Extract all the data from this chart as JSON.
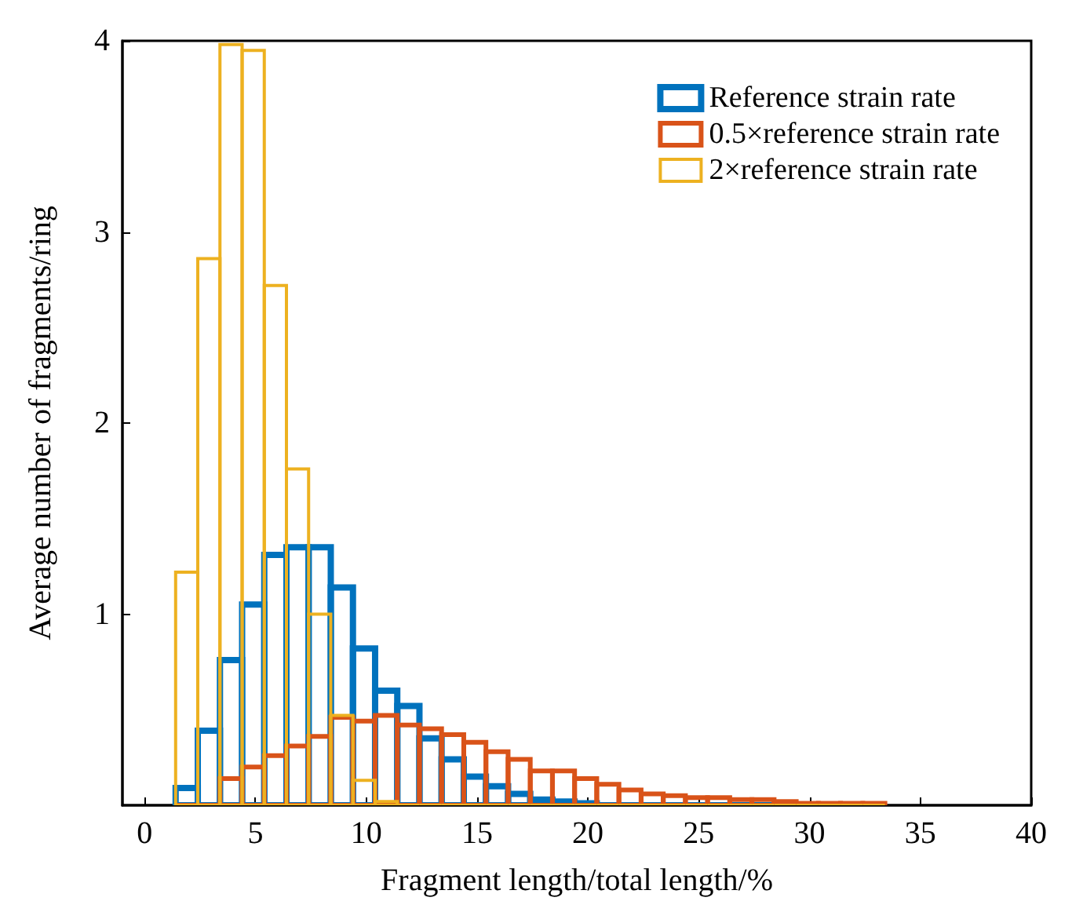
{
  "chart_data": {
    "type": "histogram",
    "xlabel": "Fragment length/total length/%",
    "ylabel": "Average number of fragments/ring",
    "bins": [
      1.4,
      2.4,
      3.4,
      4.4,
      5.4,
      6.4,
      7.4,
      8.4,
      9.4,
      10.4,
      11.4,
      12.4,
      13.4,
      14.4,
      15.4,
      16.4,
      17.4,
      18.4,
      19.4,
      20.4,
      21.4,
      22.4,
      23.4,
      24.4,
      25.4,
      26.4,
      27.4,
      28.4,
      29.4,
      30.4,
      31.4,
      32.4,
      33.4
    ],
    "series": [
      {
        "name": "Reference strain rate",
        "color": "#0072bd",
        "values": [
          0.09,
          0.39,
          0.76,
          1.05,
          1.31,
          1.35,
          1.35,
          1.14,
          0.82,
          0.6,
          0.52,
          0.35,
          0.24,
          0.15,
          0.1,
          0.06,
          0.03,
          0.02,
          0.01,
          0,
          0,
          0,
          0,
          0,
          0,
          0,
          0,
          0,
          0,
          0,
          0,
          0
        ]
      },
      {
        "name": "0.5×reference strain rate",
        "color": "#d95319",
        "values": [
          0,
          0,
          0.14,
          0.2,
          0.26,
          0.31,
          0.36,
          0.46,
          0.44,
          0.47,
          0.42,
          0.4,
          0.37,
          0.33,
          0.28,
          0.24,
          0.18,
          0.18,
          0.14,
          0.11,
          0.08,
          0.06,
          0.05,
          0.04,
          0.04,
          0.03,
          0.03,
          0.02,
          0.01,
          0.01,
          0.01,
          0.01
        ]
      },
      {
        "name": "2×reference strain rate",
        "color": "#edb120",
        "values": [
          1.22,
          2.86,
          3.98,
          3.95,
          2.72,
          1.76,
          1,
          0.47,
          0.13,
          0.02,
          0,
          0,
          0,
          0,
          0,
          0,
          0,
          0,
          0,
          0,
          0,
          0,
          0,
          0,
          0,
          0,
          0,
          0,
          0,
          0,
          0,
          0
        ]
      }
    ],
    "xlim": [
      -1,
      40
    ],
    "xticks": [
      0,
      5,
      10,
      15,
      20,
      25,
      30,
      35,
      40
    ],
    "ylim": [
      0,
      4
    ],
    "yticks": [
      1,
      2,
      3,
      4
    ],
    "grid": false,
    "legend": "top right"
  }
}
